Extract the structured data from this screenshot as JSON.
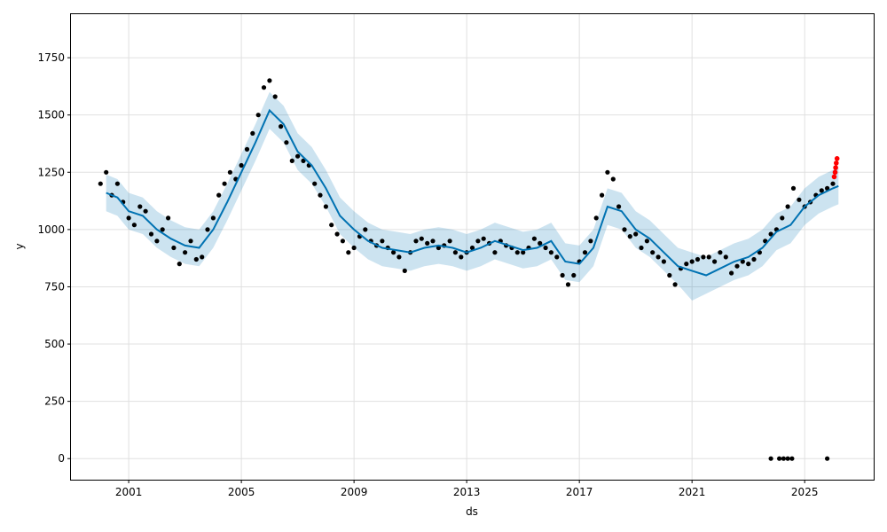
{
  "chart_data": {
    "type": "scatter",
    "title": "",
    "xlabel": "ds",
    "ylabel": "y",
    "xlim": [
      1998.95,
      2027.45
    ],
    "ylim": [
      -92,
      1940
    ],
    "x_ticks": [
      2001,
      2005,
      2009,
      2013,
      2017,
      2021,
      2025
    ],
    "x_tick_labels": [
      "2001",
      "2005",
      "2009",
      "2013",
      "2017",
      "2021",
      "2025"
    ],
    "y_ticks": [
      0,
      250,
      500,
      750,
      1000,
      1250,
      1500,
      1750
    ],
    "y_tick_labels": [
      "0",
      "250",
      "500",
      "750",
      "1000",
      "1250",
      "1500",
      "1750"
    ],
    "grid": true,
    "legend": "none",
    "colors": {
      "observed": "#000000",
      "forecast_line": "#0072B2",
      "uncertainty_band": "#0072B2",
      "highlight_points": "#ff0000",
      "grid": "#e0e0e0"
    },
    "series": [
      {
        "role": "forecast",
        "x": [
          2000.2,
          2000.6,
          2001.0,
          2001.5,
          2002.0,
          2002.5,
          2003.0,
          2003.5,
          2004.0,
          2004.5,
          2005.0,
          2005.5,
          2006.0,
          2006.5,
          2007.0,
          2007.5,
          2008.0,
          2008.5,
          2009.0,
          2009.5,
          2010.0,
          2010.5,
          2011.0,
          2011.5,
          2012.0,
          2012.5,
          2013.0,
          2013.5,
          2014.0,
          2014.5,
          2015.0,
          2015.5,
          2016.0,
          2016.5,
          2017.0,
          2017.5,
          2018.0,
          2018.5,
          2019.0,
          2019.5,
          2020.0,
          2020.5,
          2021.0,
          2021.5,
          2022.0,
          2022.5,
          2023.0,
          2023.5,
          2024.0,
          2024.5,
          2025.0,
          2025.5,
          2026.0,
          2026.2
        ],
        "y": [
          1160,
          1140,
          1080,
          1060,
          1000,
          960,
          930,
          920,
          1000,
          1120,
          1250,
          1380,
          1520,
          1460,
          1340,
          1280,
          1180,
          1060,
          1000,
          950,
          920,
          910,
          900,
          920,
          930,
          920,
          900,
          920,
          950,
          930,
          910,
          920,
          950,
          860,
          850,
          920,
          1100,
          1080,
          1000,
          960,
          900,
          840,
          820,
          800,
          830,
          860,
          880,
          920,
          990,
          1020,
          1100,
          1150,
          1180,
          1190
        ],
        "lower": [
          1080,
          1060,
          1000,
          980,
          920,
          880,
          850,
          840,
          920,
          1040,
          1170,
          1300,
          1440,
          1380,
          1260,
          1200,
          1100,
          980,
          920,
          870,
          840,
          830,
          820,
          840,
          850,
          840,
          820,
          840,
          870,
          850,
          830,
          840,
          870,
          780,
          770,
          840,
          1020,
          1000,
          920,
          880,
          820,
          760,
          690,
          720,
          750,
          780,
          800,
          840,
          910,
          940,
          1020,
          1070,
          1100,
          1110
        ],
        "upper": [
          1240,
          1220,
          1160,
          1140,
          1080,
          1040,
          1010,
          1000,
          1080,
          1200,
          1330,
          1460,
          1600,
          1540,
          1420,
          1360,
          1260,
          1140,
          1080,
          1030,
          1000,
          990,
          980,
          1000,
          1010,
          1000,
          980,
          1000,
          1030,
          1010,
          990,
          1000,
          1030,
          940,
          930,
          1000,
          1180,
          1160,
          1080,
          1040,
          980,
          920,
          900,
          880,
          910,
          940,
          960,
          1000,
          1070,
          1100,
          1180,
          1230,
          1260,
          1270
        ]
      },
      {
        "role": "observed",
        "x": [
          2000.0,
          2000.2,
          2000.4,
          2000.6,
          2000.8,
          2001.0,
          2001.2,
          2001.4,
          2001.6,
          2001.8,
          2002.0,
          2002.2,
          2002.4,
          2002.6,
          2002.8,
          2003.0,
          2003.2,
          2003.4,
          2003.6,
          2003.8,
          2004.0,
          2004.2,
          2004.4,
          2004.6,
          2004.8,
          2005.0,
          2005.2,
          2005.4,
          2005.6,
          2005.8,
          2006.0,
          2006.2,
          2006.4,
          2006.6,
          2006.8,
          2007.0,
          2007.2,
          2007.4,
          2007.6,
          2007.8,
          2008.0,
          2008.2,
          2008.4,
          2008.6,
          2008.8,
          2009.0,
          2009.2,
          2009.4,
          2009.6,
          2009.8,
          2010.0,
          2010.2,
          2010.4,
          2010.6,
          2010.8,
          2011.0,
          2011.2,
          2011.4,
          2011.6,
          2011.8,
          2012.0,
          2012.2,
          2012.4,
          2012.6,
          2012.8,
          2013.0,
          2013.2,
          2013.4,
          2013.6,
          2013.8,
          2014.0,
          2014.2,
          2014.4,
          2014.6,
          2014.8,
          2015.0,
          2015.2,
          2015.4,
          2015.6,
          2015.8,
          2016.0,
          2016.2,
          2016.4,
          2016.6,
          2016.8,
          2017.0,
          2017.2,
          2017.4,
          2017.6,
          2017.8,
          2018.0,
          2018.2,
          2018.4,
          2018.6,
          2018.8,
          2019.0,
          2019.2,
          2019.4,
          2019.6,
          2019.8,
          2020.0,
          2020.2,
          2020.4,
          2020.6,
          2020.8,
          2021.0,
          2021.2,
          2021.4,
          2021.6,
          2021.8,
          2022.0,
          2022.2,
          2022.4,
          2022.6,
          2022.8,
          2023.0,
          2023.2,
          2023.4,
          2023.6,
          2023.8,
          2024.0,
          2024.2,
          2024.4,
          2024.6,
          2024.8,
          2025.0,
          2025.2,
          2025.4,
          2025.6,
          2025.8,
          2026.0
        ],
        "y": [
          1200,
          1250,
          1150,
          1200,
          1120,
          1050,
          1020,
          1100,
          1080,
          980,
          950,
          1000,
          1050,
          920,
          850,
          900,
          950,
          870,
          880,
          1000,
          1050,
          1150,
          1200,
          1250,
          1220,
          1280,
          1350,
          1420,
          1500,
          1620,
          1650,
          1580,
          1450,
          1380,
          1300,
          1320,
          1300,
          1280,
          1200,
          1150,
          1100,
          1020,
          980,
          950,
          900,
          920,
          970,
          1000,
          950,
          930,
          950,
          920,
          900,
          880,
          820,
          900,
          950,
          960,
          940,
          950,
          920,
          930,
          950,
          900,
          880,
          900,
          920,
          950,
          960,
          940,
          900,
          950,
          930,
          920,
          900,
          900,
          920,
          960,
          940,
          920,
          900,
          880,
          800,
          760,
          800,
          860,
          900,
          950,
          1050,
          1150,
          1250,
          1220,
          1100,
          1000,
          970,
          980,
          920,
          950,
          900,
          880,
          860,
          800,
          760,
          830,
          850,
          860,
          870,
          880,
          880,
          860,
          900,
          880,
          810,
          840,
          860,
          850,
          870,
          900,
          950,
          980,
          1000,
          1050,
          1100,
          1180,
          1130,
          1100,
          1120,
          1150,
          1170,
          1180,
          1200
        ]
      },
      {
        "role": "observed-near-zero",
        "x": [
          2023.8,
          2024.1,
          2024.25,
          2024.4,
          2024.55,
          2025.8
        ],
        "y": [
          0,
          0,
          0,
          0,
          0,
          0
        ]
      },
      {
        "role": "highlighted",
        "x": [
          2026.05,
          2026.08,
          2026.1,
          2026.12,
          2026.15
        ],
        "y": [
          1230,
          1250,
          1270,
          1290,
          1310
        ]
      }
    ]
  }
}
